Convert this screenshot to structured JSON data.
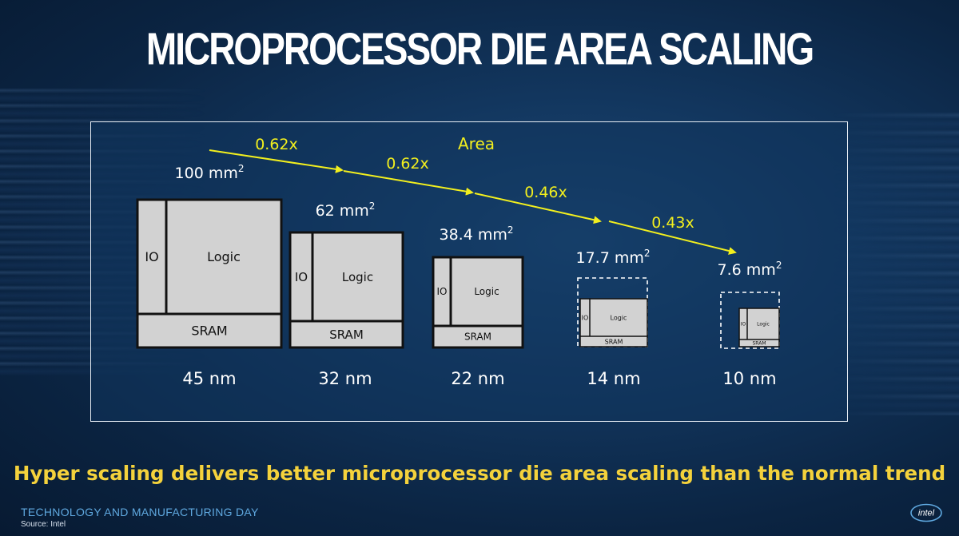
{
  "title": "MICROPROCESSOR DIE AREA SCALING",
  "diagram": {
    "trend_label": "Area",
    "area_unit": "mm",
    "area_unit_superscript": "2",
    "block_labels": {
      "io": "IO",
      "logic": "Logic",
      "sram": "SRAM"
    },
    "nodes": [
      {
        "node": "45 nm",
        "area": "100",
        "style": "solid"
      },
      {
        "node": "32 nm",
        "area": "62",
        "style": "solid"
      },
      {
        "node": "22 nm",
        "area": "38.4",
        "style": "solid"
      },
      {
        "node": "14 nm",
        "area": "17.7",
        "style": "dashed"
      },
      {
        "node": "10 nm",
        "area": "7.6",
        "style": "dashed"
      }
    ],
    "scaling_factors": [
      "0.62x",
      "0.62x",
      "0.46x",
      "0.43x"
    ],
    "colors": {
      "arrow": "#f2ef1e",
      "block_fill": "#d2d2d2",
      "block_border": "#111111",
      "text": "#ffffff"
    }
  },
  "tagline": "Hyper scaling delivers better microprocessor die area scaling than the normal trend",
  "footer": {
    "event": "TECHNOLOGY AND MANUFACTURING DAY",
    "source": "Source: Intel",
    "logo_text": "intel"
  }
}
